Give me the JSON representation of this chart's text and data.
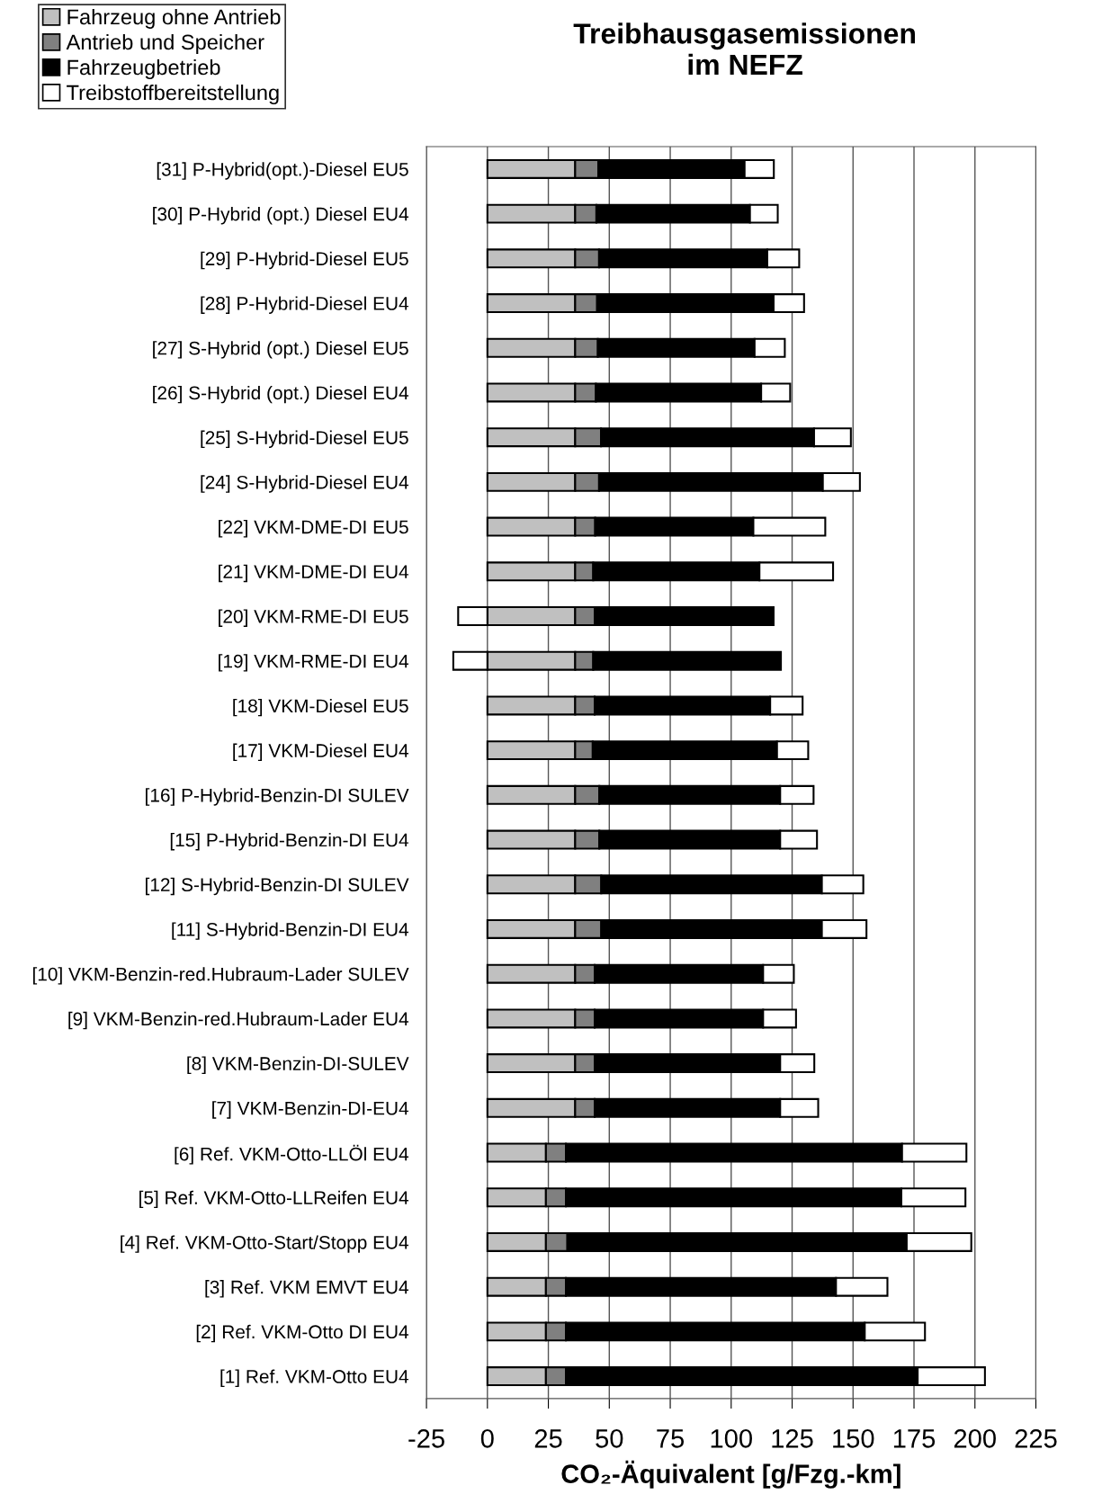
{
  "chart_data": {
    "type": "bar",
    "orientation": "horizontal",
    "stacked": true,
    "title": "Treibhausgasemissionen\nim NEFZ",
    "xlabel": "CO₂-Äquivalent [g/Fzg.-km]",
    "categories": [
      "[31] P-Hybrid(opt.)-Diesel EU5",
      "[30] P-Hybrid (opt.) Diesel EU4",
      "[29] P-Hybrid-Diesel EU5",
      "[28] P-Hybrid-Diesel EU4",
      "[27] S-Hybrid (opt.) Diesel EU5",
      "[26] S-Hybrid (opt.) Diesel EU4",
      "[25] S-Hybrid-Diesel EU5",
      "[24] S-Hybrid-Diesel EU4",
      "[22] VKM-DME-DI EU5",
      "[21] VKM-DME-DI EU4",
      "[20] VKM-RME-DI EU5",
      "[19] VKM-RME-DI EU4",
      "[18] VKM-Diesel EU5",
      "[17] VKM-Diesel EU4",
      "[16] P-Hybrid-Benzin-DI SULEV",
      "[15] P-Hybrid-Benzin-DI EU4",
      "[12] S-Hybrid-Benzin-DI SULEV",
      "[11] S-Hybrid-Benzin-DI EU4",
      "[10] VKM-Benzin-red.Hubraum-Lader SULEV",
      "[9] VKM-Benzin-red.Hubraum-Lader EU4",
      "[8] VKM-Benzin-DI-SULEV",
      "[7] VKM-Benzin-DI-EU4",
      "[6] Ref. VKM-Otto-LLÖl EU4",
      "[5] Ref. VKM-Otto-LLReifen EU4",
      "[4] Ref. VKM-Otto-Start/Stopp EU4",
      "[3] Ref. VKM EMVT EU4",
      "[2] Ref. VKM-Otto DI EU4",
      "[1] Ref. VKM-Otto EU4"
    ],
    "series": [
      {
        "name": "Fahrzeug ohne Antrieb",
        "color": "#c0c0c0",
        "values": [
          36,
          36,
          36,
          36,
          36,
          36,
          36,
          36,
          36,
          36,
          36,
          36,
          36,
          36,
          36,
          36,
          36,
          36,
          36,
          36,
          36,
          36,
          24,
          24,
          24,
          24,
          24,
          24
        ]
      },
      {
        "name": "Antrieb und Speicher",
        "color": "#808080",
        "values": [
          9.5,
          8.7,
          9.8,
          9,
          9.3,
          8.5,
          10.6,
          9.8,
          8.2,
          7.4,
          8,
          7.4,
          8,
          7.2,
          9.9,
          9.9,
          10.7,
          10.7,
          8,
          8,
          8,
          8,
          8.2,
          8.2,
          8.8,
          8.2,
          8.2,
          8.2
        ]
      },
      {
        "name": "Fahrzeugbetrieb",
        "color": "#000000",
        "values": [
          60,
          63,
          69,
          72.4,
          64.3,
          67.8,
          87.4,
          91.8,
          64.9,
          68.2,
          73.4,
          77,
          72,
          75.6,
          74.2,
          74.2,
          90.5,
          90.5,
          69.1,
          69.1,
          76.1,
          76.1,
          137.9,
          137.6,
          139.2,
          110.8,
          122.6,
          144.3
        ]
      },
      {
        "name": "Treibstoffbereitstellung",
        "color": "#ffffff",
        "values": [
          12,
          11.4,
          13.1,
          12.5,
          12.4,
          11.9,
          15.1,
          15.2,
          29.5,
          30.2,
          -12,
          -14,
          13.3,
          12.8,
          13.7,
          15.1,
          17,
          18.3,
          12.6,
          13.5,
          14,
          15.6,
          26.4,
          26.3,
          26.5,
          21.1,
          24.7,
          27.6
        ]
      }
    ],
    "xlim": [
      -25,
      225
    ],
    "xticks": [
      -25,
      0,
      25,
      50,
      75,
      100,
      125,
      150,
      175,
      200,
      225
    ],
    "grid": "x",
    "legend": "top left"
  }
}
